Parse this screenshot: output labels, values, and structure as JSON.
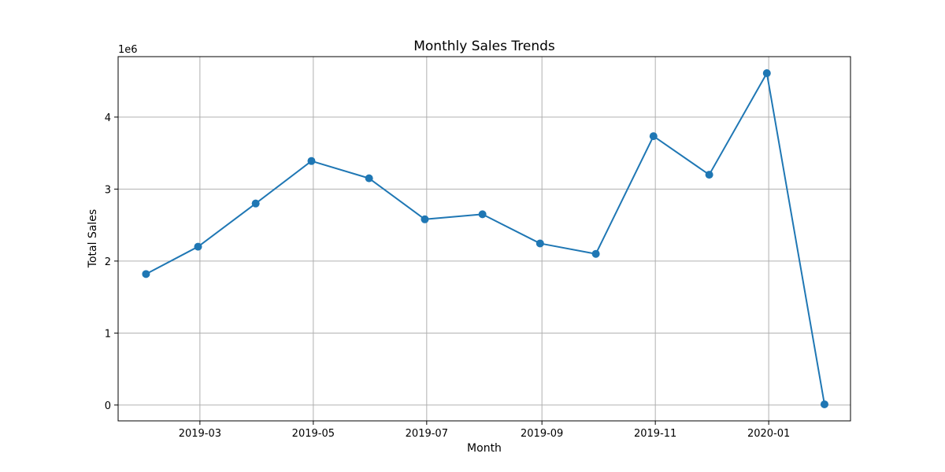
{
  "chart_data": {
    "type": "line",
    "title": "Monthly Sales Trends",
    "xlabel": "Month",
    "ylabel": "Total Sales",
    "y_offset_label": "1e6",
    "y_multiplier": 1000000,
    "grid": true,
    "series": [
      {
        "color": "#1f77b4",
        "marker": "circle",
        "points": [
          {
            "x": "2019-01-31",
            "y": 1820000
          },
          {
            "x": "2019-02-28",
            "y": 2200000
          },
          {
            "x": "2019-03-31",
            "y": 2800000
          },
          {
            "x": "2019-04-30",
            "y": 3390000
          },
          {
            "x": "2019-05-31",
            "y": 3150000
          },
          {
            "x": "2019-06-30",
            "y": 2580000
          },
          {
            "x": "2019-07-31",
            "y": 2650000
          },
          {
            "x": "2019-08-31",
            "y": 2245000
          },
          {
            "x": "2019-09-30",
            "y": 2100000
          },
          {
            "x": "2019-10-31",
            "y": 3735000
          },
          {
            "x": "2019-11-30",
            "y": 3200000
          },
          {
            "x": "2019-12-31",
            "y": 4610000
          },
          {
            "x": "2020-01-31",
            "y": 10000
          }
        ]
      }
    ],
    "x_ticks": [
      {
        "value": "2019-03-01",
        "label": "2019-03"
      },
      {
        "value": "2019-05-01",
        "label": "2019-05"
      },
      {
        "value": "2019-07-01",
        "label": "2019-07"
      },
      {
        "value": "2019-09-01",
        "label": "2019-09"
      },
      {
        "value": "2019-11-01",
        "label": "2019-11"
      },
      {
        "value": "2020-01-01",
        "label": "2020-01"
      }
    ],
    "y_ticks": [
      {
        "value": 0,
        "label": "0"
      },
      {
        "value": 1000000,
        "label": "1"
      },
      {
        "value": 2000000,
        "label": "2"
      },
      {
        "value": 3000000,
        "label": "3"
      },
      {
        "value": 4000000,
        "label": "4"
      }
    ],
    "xlim": [
      "2019-01-16",
      "2020-02-14"
    ],
    "ylim": [
      -220000,
      4840000
    ]
  }
}
